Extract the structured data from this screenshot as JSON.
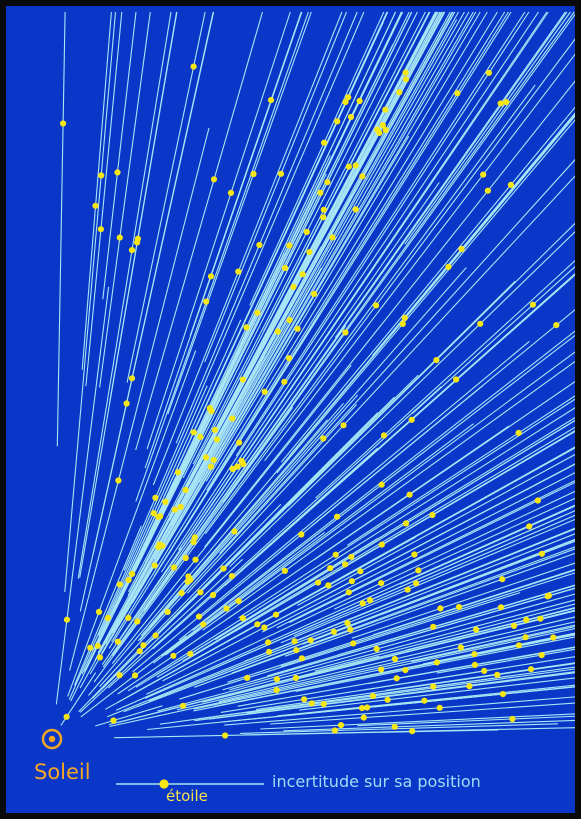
{
  "colors": {
    "background": "#0a37c8",
    "frame": "#0a0a0a",
    "uncertainty_line": "#a8e6f5",
    "star": "#f5e614",
    "sun": "#f5a623"
  },
  "legend": {
    "sun_label": "Soleil",
    "sun_symbol": "sun-symbol-icon",
    "star_label": "étoile",
    "uncertainty_label": "incertitude sur sa position"
  }
}
